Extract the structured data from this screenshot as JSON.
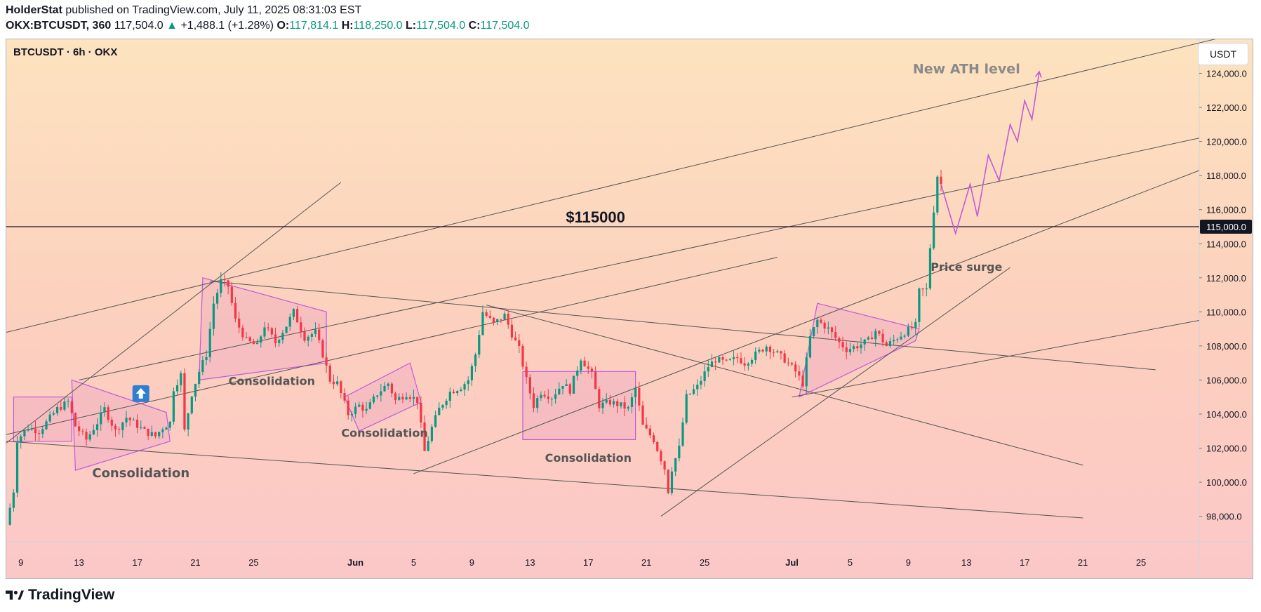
{
  "header": {
    "author": "HolderStat",
    "published_text": "published on TradingView.com, July 11, 2025 08:31:03 EST",
    "symbol": "OKX:BTCUSDT, 360",
    "price": "117,504.0",
    "change_arrow": "▲",
    "change": "+1,488.1 (+1.28%)",
    "open_label": "O:",
    "open": "117,814.1",
    "high_label": "H:",
    "high": "118,250.0",
    "low_label": "L:",
    "low": "117,504.0",
    "close_label": "C:",
    "close": "117,504.0"
  },
  "chart_legend": "BTCUSDT · 6h · OKX",
  "currency_button": "USDT",
  "footer": {
    "brand": "TradingView",
    "logo_icon": "tradingview-logo-icon"
  },
  "colors": {
    "up": "#089981",
    "down": "#f23645",
    "pattern": "#c15ad8",
    "line": "#555555",
    "bg_top": "#fde3bf",
    "bg_bottom": "#fbc8c8"
  },
  "chart_data": {
    "type": "candlestick",
    "title": "BTCUSDT · 6h · OKX",
    "xlabel": "",
    "ylabel": "",
    "ylim": [
      96500,
      126000
    ],
    "x_range": [
      "2025-05-08",
      "2025-07-29"
    ],
    "x_ticks": [
      {
        "date": "2025-05-09",
        "label": "9"
      },
      {
        "date": "2025-05-13",
        "label": "13"
      },
      {
        "date": "2025-05-17",
        "label": "17"
      },
      {
        "date": "2025-05-21",
        "label": "21"
      },
      {
        "date": "2025-05-25",
        "label": "25"
      },
      {
        "date": "2025-06-01",
        "label": "Jun"
      },
      {
        "date": "2025-06-05",
        "label": "5"
      },
      {
        "date": "2025-06-09",
        "label": "9"
      },
      {
        "date": "2025-06-13",
        "label": "13"
      },
      {
        "date": "2025-06-17",
        "label": "17"
      },
      {
        "date": "2025-06-21",
        "label": "21"
      },
      {
        "date": "2025-06-25",
        "label": "25"
      },
      {
        "date": "2025-07-01",
        "label": "Jul"
      },
      {
        "date": "2025-07-05",
        "label": "5"
      },
      {
        "date": "2025-07-09",
        "label": "9"
      },
      {
        "date": "2025-07-13",
        "label": "13"
      },
      {
        "date": "2025-07-17",
        "label": "17"
      },
      {
        "date": "2025-07-21",
        "label": "21"
      },
      {
        "date": "2025-07-25",
        "label": "25"
      }
    ],
    "y_ticks": [
      {
        "value": 98000,
        "label": "98,000.0"
      },
      {
        "value": 100000,
        "label": "100,000.0"
      },
      {
        "value": 102000,
        "label": "102,000.0"
      },
      {
        "value": 104000,
        "label": "104,000.0"
      },
      {
        "value": 106000,
        "label": "106,000.0"
      },
      {
        "value": 108000,
        "label": "108,000.0"
      },
      {
        "value": 110000,
        "label": "110,000.0"
      },
      {
        "value": 112000,
        "label": "112,000.0"
      },
      {
        "value": 114000,
        "label": "114,000.0"
      },
      {
        "value": 116000,
        "label": "116,000.0"
      },
      {
        "value": 118000,
        "label": "118,000.0"
      },
      {
        "value": 120000,
        "label": "120,000.0"
      },
      {
        "value": 122000,
        "label": "122,000.0"
      },
      {
        "value": 124000,
        "label": "124,000.0"
      }
    ],
    "current_price": {
      "value": 115000,
      "label": "115,000.0"
    },
    "price_path": [
      [
        "2025-05-08T00:00",
        97500
      ],
      [
        "2025-05-08T12:00",
        99500
      ],
      [
        "2025-05-08T18:00",
        102500
      ],
      [
        "2025-05-09T12:00",
        103200
      ],
      [
        "2025-05-10T06:00",
        103000
      ],
      [
        "2025-05-10T18:00",
        103500
      ],
      [
        "2025-05-11T12:00",
        104300
      ],
      [
        "2025-05-12T06:00",
        104700
      ],
      [
        "2025-05-12T18:00",
        103300
      ],
      [
        "2025-05-13T12:00",
        102500
      ],
      [
        "2025-05-14T06:00",
        103500
      ],
      [
        "2025-05-14T18:00",
        104300
      ],
      [
        "2025-05-15T12:00",
        103000
      ],
      [
        "2025-05-16T06:00",
        103800
      ],
      [
        "2025-05-16T18:00",
        103500
      ],
      [
        "2025-05-17T12:00",
        103000
      ],
      [
        "2025-05-18T06:00",
        102700
      ],
      [
        "2025-05-18T18:00",
        103200
      ],
      [
        "2025-05-19T06:00",
        103500
      ],
      [
        "2025-05-19T12:00",
        105500
      ],
      [
        "2025-05-20T00:00",
        106300
      ],
      [
        "2025-05-20T06:00",
        103000
      ],
      [
        "2025-05-20T18:00",
        105200
      ],
      [
        "2025-05-21T06:00",
        106500
      ],
      [
        "2025-05-21T18:00",
        107500
      ],
      [
        "2025-05-22T06:00",
        110500
      ],
      [
        "2025-05-22T18:00",
        111800
      ],
      [
        "2025-05-23T06:00",
        111500
      ],
      [
        "2025-05-23T18:00",
        109500
      ],
      [
        "2025-05-24T12:00",
        108300
      ],
      [
        "2025-05-25T06:00",
        108000
      ],
      [
        "2025-05-25T18:00",
        109200
      ],
      [
        "2025-05-26T12:00",
        108200
      ],
      [
        "2025-05-27T06:00",
        109200
      ],
      [
        "2025-05-27T18:00",
        110000
      ],
      [
        "2025-05-28T12:00",
        108500
      ],
      [
        "2025-05-29T06:00",
        108800
      ],
      [
        "2025-05-29T18:00",
        107500
      ],
      [
        "2025-05-30T06:00",
        106000
      ],
      [
        "2025-05-30T18:00",
        105800
      ],
      [
        "2025-05-31T12:00",
        104000
      ],
      [
        "2025-06-01T06:00",
        104500
      ],
      [
        "2025-06-01T18:00",
        104200
      ],
      [
        "2025-06-02T12:00",
        105200
      ],
      [
        "2025-06-03T06:00",
        105800
      ],
      [
        "2025-06-03T18:00",
        104800
      ],
      [
        "2025-06-04T12:00",
        105200
      ],
      [
        "2025-06-05T06:00",
        104800
      ],
      [
        "2025-06-05T18:00",
        101800
      ],
      [
        "2025-06-06T06:00",
        103200
      ],
      [
        "2025-06-06T18:00",
        104300
      ],
      [
        "2025-06-07T12:00",
        105300
      ],
      [
        "2025-06-08T06:00",
        105600
      ],
      [
        "2025-06-08T18:00",
        106000
      ],
      [
        "2025-06-09T06:00",
        107500
      ],
      [
        "2025-06-09T18:00",
        110000
      ],
      [
        "2025-06-10T12:00",
        109300
      ],
      [
        "2025-06-11T06:00",
        109800
      ],
      [
        "2025-06-11T18:00",
        108700
      ],
      [
        "2025-06-12T06:00",
        107800
      ],
      [
        "2025-06-12T18:00",
        106000
      ],
      [
        "2025-06-13T06:00",
        104500
      ],
      [
        "2025-06-13T18:00",
        105300
      ],
      [
        "2025-06-14T12:00",
        105000
      ],
      [
        "2025-06-15T06:00",
        105800
      ],
      [
        "2025-06-15T18:00",
        105400
      ],
      [
        "2025-06-16T12:00",
        107300
      ],
      [
        "2025-06-17T06:00",
        106300
      ],
      [
        "2025-06-17T18:00",
        104500
      ],
      [
        "2025-06-18T12:00",
        104700
      ],
      [
        "2025-06-19T06:00",
        104500
      ],
      [
        "2025-06-19T18:00",
        104300
      ],
      [
        "2025-06-20T06:00",
        105500
      ],
      [
        "2025-06-20T18:00",
        103300
      ],
      [
        "2025-06-21T12:00",
        102500
      ],
      [
        "2025-06-22T06:00",
        100800
      ],
      [
        "2025-06-22T12:00",
        99500
      ],
      [
        "2025-06-22T18:00",
        100800
      ],
      [
        "2025-06-23T06:00",
        102000
      ],
      [
        "2025-06-23T18:00",
        105000
      ],
      [
        "2025-06-24T12:00",
        105600
      ],
      [
        "2025-06-25T06:00",
        106800
      ],
      [
        "2025-06-25T18:00",
        107200
      ],
      [
        "2025-06-26T12:00",
        107000
      ],
      [
        "2025-06-27T06:00",
        107300
      ],
      [
        "2025-06-27T18:00",
        107000
      ],
      [
        "2025-06-28T12:00",
        107500
      ],
      [
        "2025-06-29T06:00",
        108000
      ],
      [
        "2025-06-29T18:00",
        107700
      ],
      [
        "2025-06-30T12:00",
        107200
      ],
      [
        "2025-07-01T06:00",
        106500
      ],
      [
        "2025-07-01T18:00",
        105800
      ],
      [
        "2025-07-02T06:00",
        108500
      ],
      [
        "2025-07-02T18:00",
        109500
      ],
      [
        "2025-07-03T12:00",
        109000
      ],
      [
        "2025-07-04T06:00",
        108200
      ],
      [
        "2025-07-04T18:00",
        107800
      ],
      [
        "2025-07-05T12:00",
        108000
      ],
      [
        "2025-07-06T06:00",
        108300
      ],
      [
        "2025-07-06T18:00",
        108900
      ],
      [
        "2025-07-07T12:00",
        108000
      ],
      [
        "2025-07-08T06:00",
        108500
      ],
      [
        "2025-07-08T18:00",
        108800
      ],
      [
        "2025-07-09T12:00",
        109200
      ],
      [
        "2025-07-09T18:00",
        111200
      ],
      [
        "2025-07-10T06:00",
        111300
      ],
      [
        "2025-07-10T12:00",
        113800
      ],
      [
        "2025-07-10T18:00",
        116000
      ],
      [
        "2025-07-11T00:00",
        118000
      ],
      [
        "2025-07-11T06:00",
        117500
      ]
    ],
    "projection": [
      [
        "2025-07-11T06:00",
        117500
      ],
      [
        "2025-07-12T06:00",
        114600
      ],
      [
        "2025-07-13T06:00",
        117500
      ],
      [
        "2025-07-13T18:00",
        115600
      ],
      [
        "2025-07-14T12:00",
        119200
      ],
      [
        "2025-07-15T06:00",
        117700
      ],
      [
        "2025-07-16T00:00",
        121000
      ],
      [
        "2025-07-16T12:00",
        120000
      ],
      [
        "2025-07-17T00:00",
        122400
      ],
      [
        "2025-07-17T12:00",
        121300
      ],
      [
        "2025-07-18T00:00",
        124100
      ]
    ],
    "horizontal_level": {
      "value": 115000,
      "label": "$115000"
    },
    "trend_lines": [
      [
        [
          "2025-05-08T00:00",
          108800
        ],
        [
          "2025-07-31T00:00",
          126200
        ]
      ],
      [
        [
          "2025-05-08T00:00",
          102800
        ],
        [
          "2025-06-30T00:00",
          113200
        ]
      ],
      [
        [
          "2025-05-08T00:00",
          102300
        ],
        [
          "2025-05-31T00:00",
          117600
        ]
      ],
      [
        [
          "2025-05-22T00:00",
          111800
        ],
        [
          "2025-07-26T00:00",
          106600
        ]
      ],
      [
        [
          "2025-06-10T00:00",
          110400
        ],
        [
          "2025-07-21T00:00",
          101000
        ]
      ],
      [
        [
          "2025-05-08T00:00",
          102400
        ],
        [
          "2025-07-21T00:00",
          97900
        ]
      ],
      [
        [
          "2025-05-13T00:00",
          106000
        ],
        [
          "2025-07-29T00:00",
          120200
        ]
      ],
      [
        [
          "2025-06-05T00:00",
          100500
        ],
        [
          "2025-07-29T00:00",
          118300
        ]
      ],
      [
        [
          "2025-06-22T00:00",
          98000
        ],
        [
          "2025-07-16T00:00",
          112600
        ]
      ],
      [
        [
          "2025-07-01T00:00",
          105000
        ],
        [
          "2025-07-29T00:00",
          109500
        ]
      ]
    ],
    "consolidation_zones": [
      [
        [
          "2025-05-08T12:00",
          105000
        ],
        [
          "2025-05-12T12:00",
          105000
        ],
        [
          "2025-05-12T12:00",
          102400
        ],
        [
          "2025-05-08T12:00",
          102400
        ]
      ],
      [
        [
          "2025-05-12T12:00",
          106000
        ],
        [
          "2025-05-19T00:00",
          104100
        ],
        [
          "2025-05-19T06:00",
          102400
        ],
        [
          "2025-05-12T18:00",
          100700
        ]
      ],
      [
        [
          "2025-05-21T06:00",
          106000
        ],
        [
          "2025-05-21T12:00",
          112000
        ],
        [
          "2025-05-30T00:00",
          110000
        ],
        [
          "2025-05-30T00:00",
          107000
        ]
      ],
      [
        [
          "2025-05-31T06:00",
          105000
        ],
        [
          "2025-06-04T18:00",
          107000
        ],
        [
          "2025-06-05T12:00",
          104700
        ],
        [
          "2025-06-01T06:00",
          103000
        ]
      ],
      [
        [
          "2025-06-12T12:00",
          106500
        ],
        [
          "2025-06-20T06:00",
          106500
        ],
        [
          "2025-06-20T06:00",
          102500
        ],
        [
          "2025-06-12T12:00",
          102500
        ]
      ],
      [
        [
          "2025-07-01T12:00",
          105000
        ],
        [
          "2025-07-02T18:00",
          110500
        ],
        [
          "2025-07-09T18:00",
          109000
        ],
        [
          "2025-07-09T12:00",
          108300
        ]
      ]
    ],
    "annotations": [
      {
        "text": "Consolidation",
        "date": "2025-05-17T06:00",
        "price": 100300,
        "size": 18
      },
      {
        "text": "Consolidation",
        "date": "2025-05-26T06:00",
        "price": 105700,
        "size": 16
      },
      {
        "text": "Consolidation",
        "date": "2025-06-03T00:00",
        "price": 102650,
        "size": 16
      },
      {
        "text": "Consolidation",
        "date": "2025-06-17T00:00",
        "price": 101200,
        "size": 16
      },
      {
        "text": "Price surge",
        "date": "2025-07-13T00:00",
        "price": 112400,
        "size": 16
      },
      {
        "text": "New ATH level",
        "date": "2025-07-13T00:00",
        "price": 124000,
        "size": 19
      }
    ],
    "marker": {
      "icon": "up-arrow-box-icon",
      "date": "2025-05-17T06:00",
      "price": 105200
    }
  }
}
